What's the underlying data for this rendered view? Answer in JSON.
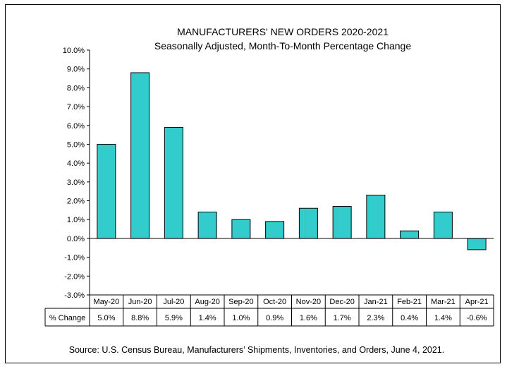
{
  "chart_data": {
    "type": "bar",
    "title": "MANUFACTURERS' NEW ORDERS 2020-2021",
    "subtitle": "Seasonally Adjusted,  Month-To-Month Percentage Change",
    "categories": [
      "May-20",
      "Jun-20",
      "Jul-20",
      "Aug-20",
      "Sep-20",
      "Oct-20",
      "Nov-20",
      "Dec-20",
      "Jan-21",
      "Feb-21",
      "Mar-21",
      "Apr-21"
    ],
    "series": [
      {
        "name": "% Change",
        "values": [
          5.0,
          8.8,
          5.9,
          1.4,
          1.0,
          0.9,
          1.6,
          1.7,
          2.3,
          0.4,
          1.4,
          -0.6
        ]
      }
    ],
    "data_labels": [
      "5.0%",
      "8.8%",
      "5.9%",
      "1.4%",
      "1.0%",
      "0.9%",
      "1.6%",
      "1.7%",
      "2.3%",
      "0.4%",
      "1.4%",
      "-0.6%"
    ],
    "yticks": [
      "10.0%",
      "9.0%",
      "8.0%",
      "7.0%",
      "6.0%",
      "5.0%",
      "4.0%",
      "3.0%",
      "2.0%",
      "1.0%",
      "0.0%",
      "-1.0%",
      "-2.0%",
      "-3.0%"
    ],
    "ylim": [
      -3,
      10
    ],
    "ystep": 1,
    "grid": false,
    "legend": "data-table-below",
    "bar_color": "#33cccc",
    "table_row_label": "% Change",
    "source": "Source: U.S. Census Bureau, Manufacturers’ Shipments, Inventories, and Orders, June 4, 2021."
  }
}
